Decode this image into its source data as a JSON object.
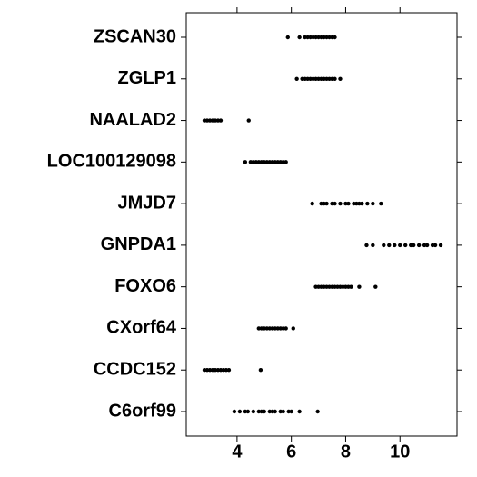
{
  "chart_data": {
    "type": "dotplot",
    "categories": [
      "ZSCAN30",
      "ZGLP1",
      "NAALAD2",
      "LOC100129098",
      "JMJD7",
      "GNPDA1",
      "FOXO6",
      "CXorf64",
      "CCDC152",
      "C6orf99"
    ],
    "values": [
      [
        5.87,
        6.3,
        6.5,
        6.6,
        6.7,
        6.8,
        6.9,
        7.0,
        7.1,
        7.2,
        7.3,
        7.4,
        7.5,
        7.6
      ],
      [
        6.2,
        6.4,
        6.5,
        6.6,
        6.7,
        6.8,
        6.9,
        7.0,
        7.1,
        7.2,
        7.3,
        7.4,
        7.5,
        7.6,
        7.8
      ],
      [
        2.8,
        2.9,
        3.0,
        3.1,
        3.2,
        3.3,
        3.4,
        4.43
      ],
      [
        4.3,
        4.5,
        4.6,
        4.7,
        4.8,
        4.9,
        5.0,
        5.1,
        5.2,
        5.3,
        5.4,
        5.5,
        5.6,
        5.7,
        5.8
      ],
      [
        6.77,
        7.1,
        7.2,
        7.3,
        7.5,
        7.6,
        7.8,
        8.0,
        8.1,
        8.3,
        8.4,
        8.5,
        8.6,
        8.8,
        9.0,
        9.3
      ],
      [
        8.77,
        9.0,
        9.4,
        9.6,
        9.8,
        10.0,
        10.2,
        10.4,
        10.5,
        10.7,
        10.9,
        11.0,
        11.2,
        11.3,
        11.5
      ],
      [
        6.9,
        7.0,
        7.1,
        7.2,
        7.3,
        7.4,
        7.5,
        7.6,
        7.7,
        7.8,
        7.9,
        8.0,
        8.1,
        8.2,
        8.5,
        9.1
      ],
      [
        4.8,
        4.9,
        5.0,
        5.1,
        5.2,
        5.3,
        5.4,
        5.5,
        5.6,
        5.7,
        5.8,
        6.07
      ],
      [
        2.8,
        2.9,
        3.0,
        3.1,
        3.2,
        3.3,
        3.4,
        3.5,
        3.6,
        3.7,
        4.87
      ],
      [
        3.9,
        4.1,
        4.3,
        4.4,
        4.6,
        4.8,
        4.9,
        5.0,
        5.2,
        5.3,
        5.4,
        5.6,
        5.7,
        5.9,
        6.0,
        6.3,
        6.97
      ]
    ],
    "color": "#000000",
    "xlim": [
      2.13,
      12.1
    ],
    "xticks": [
      4,
      6,
      8,
      10
    ]
  }
}
